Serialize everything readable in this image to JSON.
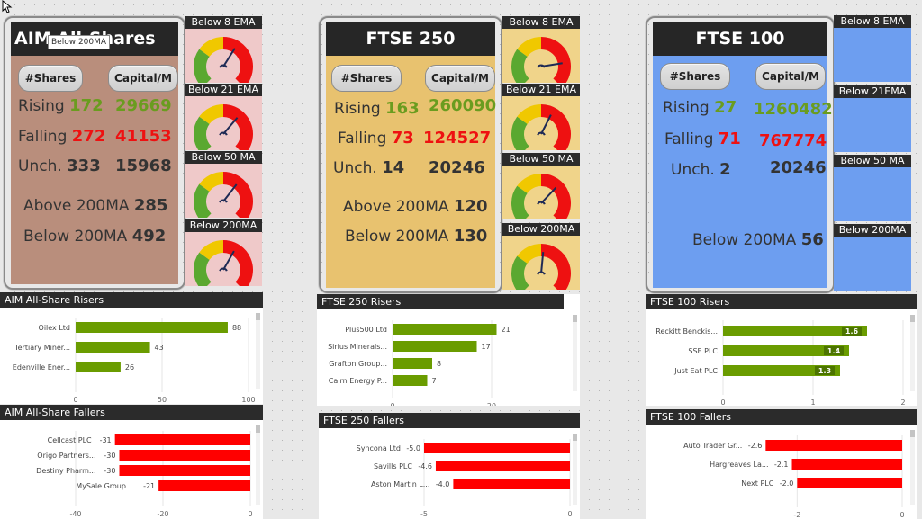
{
  "tooltip": "Below 200MA",
  "panels": [
    {
      "title": "AIM All-Shares",
      "colors": {
        "bg": "#b98e7c",
        "gauge_bg": "#efc9c9"
      },
      "shares_label": "#Shares",
      "capital_label": "Capital/M",
      "rising_label": "Rising",
      "rising_count": "172",
      "rising_capital": "29669",
      "falling_label": "Falling",
      "falling_count": "272",
      "falling_capital": "41153",
      "unch_label": "Unch.",
      "unch_count": "333",
      "unch_capital": "15968",
      "above_label": "Above 200MA",
      "above_value": "285",
      "below_label": "Below 200MA",
      "below_value": "492",
      "gauges": [
        {
          "label": "Below 8 EMA",
          "level": 0.62
        },
        {
          "label": "Below 21 EMA",
          "level": 0.65
        },
        {
          "label": "Below 50 MA",
          "level": 0.64
        },
        {
          "label": "Below 200MA",
          "level": 0.61
        }
      ]
    },
    {
      "title": "FTSE 250",
      "colors": {
        "bg": "#e8c26f",
        "gauge_bg": "#f0d48a"
      },
      "shares_label": "#Shares",
      "capital_label": "Capital/M",
      "rising_label": "Rising",
      "rising_count": "163",
      "rising_capital": "260090",
      "falling_label": "Falling",
      "falling_count": "73",
      "falling_capital": "124527",
      "unch_label": "Unch.",
      "unch_count": "14",
      "unch_capital": "20246",
      "above_label": "Above 200MA",
      "above_value": "120",
      "below_label": "Below 200MA",
      "below_value": "130",
      "gauges": [
        {
          "label": "Below 8 EMA",
          "level": 0.8
        },
        {
          "label": "Below 21 EMA",
          "level": 0.6
        },
        {
          "label": "Below 50 MA",
          "level": 0.66
        },
        {
          "label": "Below 200MA",
          "level": 0.52
        }
      ]
    },
    {
      "title": "FTSE 100",
      "colors": {
        "bg": "#6d9ef0",
        "gauge_bg": "#6d9ef0"
      },
      "shares_label": "#Shares",
      "capital_label": "Capital/M",
      "rising_label": "Rising",
      "rising_count": "27",
      "rising_capital": "1260482",
      "falling_label": "Falling",
      "falling_count": "71",
      "falling_capital": "767774",
      "unch_label": "Unch.",
      "unch_count": "2",
      "unch_capital": "20246",
      "above_label": "",
      "above_value": "",
      "below_label": "Below 200MA",
      "below_value": "56",
      "gauges": [
        {
          "label": "Below 8 EMA"
        },
        {
          "label": "Below 21EMA"
        },
        {
          "label": "Below 50 MA"
        },
        {
          "label": "Below 200MA"
        }
      ]
    }
  ],
  "chart_data": [
    {
      "type": "bar",
      "title": "AIM All-Share Risers",
      "categories": [
        "Oilex Ltd",
        "Tertiary Miner...",
        "Edenville Ener..."
      ],
      "values": [
        88,
        43,
        26
      ],
      "xlim": [
        0,
        100
      ],
      "ticks": [
        0,
        50,
        100
      ],
      "color": "#6a9c00",
      "label_pos": "outside"
    },
    {
      "type": "bar",
      "title": "FTSE 250 Risers",
      "categories": [
        "Plus500 Ltd",
        "Sirius Minerals...",
        "Grafton Group...",
        "Cairn Energy P..."
      ],
      "values": [
        21,
        17,
        8,
        7
      ],
      "xlim": [
        0,
        24
      ],
      "ticks": [
        0,
        20
      ],
      "color": "#6a9c00",
      "label_pos": "outside"
    },
    {
      "type": "bar",
      "title": "FTSE 100 Risers",
      "categories": [
        "Reckitt Benckis...",
        "SSE PLC",
        "Just Eat PLC"
      ],
      "values": [
        1.6,
        1.4,
        1.3
      ],
      "xlim": [
        0,
        2
      ],
      "ticks": [
        0,
        1,
        2
      ],
      "color": "#6a9c00",
      "label_pos": "inside"
    },
    {
      "type": "bar",
      "title": "AIM All-Share Fallers",
      "categories": [
        "Cellcast PLC",
        "Origo Partners...",
        "Destiny Pharm...",
        "MySale Group ..."
      ],
      "values": [
        -31,
        -30,
        -30,
        -21
      ],
      "xlim": [
        -40,
        0
      ],
      "ticks": [
        -40,
        -20,
        0
      ],
      "color": "#ff0000",
      "label_pos": "outside"
    },
    {
      "type": "bar",
      "title": "FTSE 250 Fallers",
      "categories": [
        "Syncona Ltd",
        "Savills PLC",
        "Aston Martin L..."
      ],
      "values": [
        -5.0,
        -4.6,
        -4.0
      ],
      "xlim": [
        -5,
        0
      ],
      "ticks": [
        -5,
        0
      ],
      "color": "#ff0000",
      "label_pos": "outside"
    },
    {
      "type": "bar",
      "title": "FTSE 100 Fallers",
      "categories": [
        "Auto Trader Gr...",
        "Hargreaves La...",
        "Next PLC"
      ],
      "values": [
        -2.6,
        -2.1,
        -2.0
      ],
      "xlim": [
        -3,
        0
      ],
      "ticks": [
        -2,
        0
      ],
      "color": "#ff0000",
      "label_pos": "outside"
    }
  ]
}
